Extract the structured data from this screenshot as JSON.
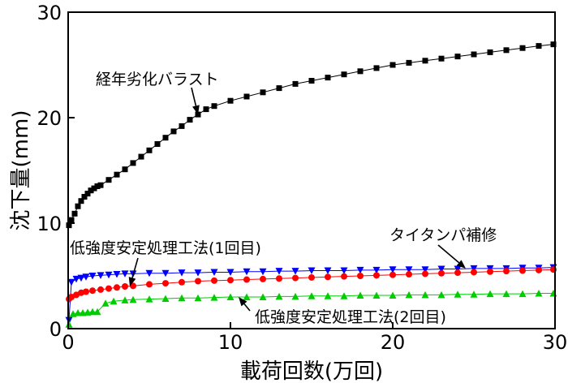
{
  "chart_data": {
    "type": "line",
    "xlabel": "載荷回数(万回)",
    "ylabel": "沈下量(mm)",
    "xlim": [
      0,
      30
    ],
    "ylim": [
      0,
      30
    ],
    "xticks": [
      0,
      10,
      20,
      30
    ],
    "yticks": [
      0,
      10,
      20,
      30
    ],
    "grid": false,
    "legend": "none",
    "series": [
      {
        "name": "経年劣化バラスト",
        "color": "#000000",
        "marker": "square",
        "x": [
          0.05,
          0.2,
          0.4,
          0.6,
          0.8,
          1.0,
          1.2,
          1.4,
          1.6,
          1.8,
          2.0,
          2.5,
          3.0,
          3.5,
          4.0,
          4.5,
          5.0,
          5.5,
          6.0,
          6.5,
          7.0,
          7.5,
          8.0,
          8.5,
          9.0,
          10.0,
          11.0,
          12.0,
          13.0,
          14.0,
          15.0,
          16.0,
          17.0,
          18.0,
          19.0,
          20.0,
          21.0,
          22.0,
          23.0,
          24.0,
          25.0,
          26.0,
          27.0,
          28.0,
          29.0,
          29.9
        ],
        "y": [
          9.8,
          10.3,
          10.9,
          11.6,
          12.1,
          12.5,
          12.8,
          13.1,
          13.3,
          13.5,
          13.6,
          14.1,
          14.6,
          15.1,
          15.7,
          16.3,
          16.9,
          17.5,
          18.1,
          18.7,
          19.2,
          19.8,
          20.3,
          20.8,
          21.1,
          21.6,
          22.0,
          22.4,
          22.8,
          23.2,
          23.5,
          23.8,
          24.1,
          24.4,
          24.7,
          25.0,
          25.2,
          25.4,
          25.6,
          25.8,
          26.0,
          26.2,
          26.4,
          26.6,
          26.8,
          26.95
        ]
      },
      {
        "name": "タイタンパ補修",
        "color": "#0000ff",
        "marker": "triangle-down",
        "x": [
          0.05,
          0.2,
          0.5,
          0.8,
          1.1,
          1.5,
          2.0,
          2.5,
          3.0,
          3.5,
          4.0,
          5.0,
          6.0,
          7.0,
          8.0,
          9.0,
          10.0,
          11.0,
          12.0,
          13.0,
          14.0,
          15.0,
          16.0,
          17.0,
          18.0,
          19.0,
          20.0,
          21.0,
          22.0,
          23.0,
          24.0,
          25.0,
          26.0,
          27.0,
          28.0,
          29.0,
          29.9
        ],
        "y": [
          0.8,
          4.4,
          4.7,
          4.8,
          4.9,
          5.0,
          5.05,
          5.1,
          5.15,
          5.2,
          5.2,
          5.25,
          5.25,
          5.3,
          5.3,
          5.35,
          5.35,
          5.4,
          5.4,
          5.45,
          5.45,
          5.5,
          5.5,
          5.5,
          5.55,
          5.55,
          5.6,
          5.6,
          5.6,
          5.65,
          5.65,
          5.7,
          5.7,
          5.7,
          5.75,
          5.75,
          5.8
        ]
      },
      {
        "name": "低強度安定処理工法(1回目)",
        "color": "#ff0000",
        "marker": "circle",
        "x": [
          0.05,
          0.2,
          0.5,
          0.8,
          1.1,
          1.5,
          2.0,
          2.5,
          3.0,
          3.5,
          4.0,
          5.0,
          6.0,
          7.0,
          8.0,
          9.0,
          10.0,
          11.0,
          12.0,
          13.0,
          14.0,
          15.0,
          16.0,
          17.0,
          18.0,
          19.0,
          20.0,
          21.0,
          22.0,
          23.0,
          24.0,
          25.0,
          26.0,
          27.0,
          28.0,
          29.0,
          29.9
        ],
        "y": [
          2.8,
          3.0,
          3.2,
          3.4,
          3.5,
          3.6,
          3.7,
          3.8,
          3.9,
          4.0,
          4.05,
          4.2,
          4.3,
          4.4,
          4.5,
          4.55,
          4.6,
          4.65,
          4.7,
          4.75,
          4.8,
          4.85,
          4.9,
          4.95,
          5.0,
          5.05,
          5.1,
          5.15,
          5.2,
          5.25,
          5.3,
          5.35,
          5.4,
          5.45,
          5.5,
          5.55,
          5.6
        ]
      },
      {
        "name": "低強度安定処理工法(2回目)",
        "color": "#00cc00",
        "marker": "triangle-up",
        "x": [
          0.05,
          0.3,
          0.6,
          0.9,
          1.2,
          1.5,
          1.8,
          2.3,
          2.8,
          3.5,
          4.0,
          5.0,
          6.0,
          7.0,
          8.0,
          9.0,
          10.0,
          11.0,
          12.0,
          13.0,
          14.0,
          15.0,
          16.0,
          17.0,
          18.0,
          19.0,
          20.0,
          21.0,
          22.0,
          23.0,
          24.0,
          25.0,
          26.0,
          27.0,
          28.0,
          29.0,
          29.9
        ],
        "y": [
          0.4,
          1.4,
          1.5,
          1.5,
          1.55,
          1.6,
          1.6,
          2.4,
          2.6,
          2.7,
          2.75,
          2.8,
          2.85,
          2.9,
          2.9,
          2.95,
          3.0,
          3.0,
          3.0,
          3.05,
          3.05,
          3.1,
          3.1,
          3.1,
          3.15,
          3.15,
          3.15,
          3.2,
          3.2,
          3.2,
          3.25,
          3.25,
          3.3,
          3.3,
          3.3,
          3.35,
          3.35
        ]
      }
    ],
    "annotations": [
      {
        "text": "経年劣化バラスト",
        "target": [
          8.0,
          20.3
        ]
      },
      {
        "text": "タイタンパ補修",
        "target": [
          24.5,
          5.7
        ]
      },
      {
        "text": "低強度安定処理工法(1回目)",
        "target": [
          3.8,
          4.0
        ]
      },
      {
        "text": "低強度安定処理工法(2回目)",
        "target": [
          10.5,
          3.0
        ]
      }
    ]
  }
}
